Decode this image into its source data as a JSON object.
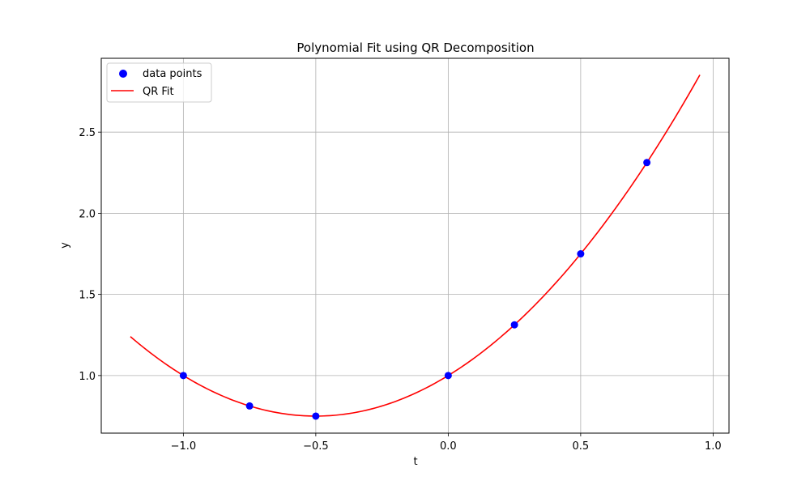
{
  "chart_data": {
    "type": "scatter",
    "title": "Polynomial Fit using QR Decomposition",
    "xlabel": "t",
    "ylabel": "y",
    "xlim": [
      -1.31,
      1.06
    ],
    "ylim": [
      0.645,
      2.955
    ],
    "xticks": [
      -1.0,
      -0.5,
      0.0,
      0.5,
      1.0
    ],
    "xtick_labels": [
      "−1.0",
      "−0.5",
      "0.0",
      "0.5",
      "1.0"
    ],
    "yticks": [
      1.0,
      1.5,
      2.0,
      2.5
    ],
    "ytick_labels": [
      "1.0",
      "1.5",
      "2.0",
      "2.5"
    ],
    "grid": true,
    "legend_position": "top-left",
    "series": [
      {
        "name": "data points",
        "kind": "scatter",
        "color": "#0000ff",
        "x": [
          -1.0,
          -0.75,
          -0.5,
          0.0,
          0.25,
          0.5,
          0.75
        ],
        "y": [
          1.0,
          0.8125,
          0.75,
          1.0,
          1.3125,
          1.75,
          2.3125
        ]
      },
      {
        "name": "QR Fit",
        "kind": "line",
        "color": "#ff0000",
        "x_range": [
          -1.2,
          0.95
        ],
        "coefficients": [
          1.0,
          1.0,
          1.0
        ]
      }
    ]
  }
}
